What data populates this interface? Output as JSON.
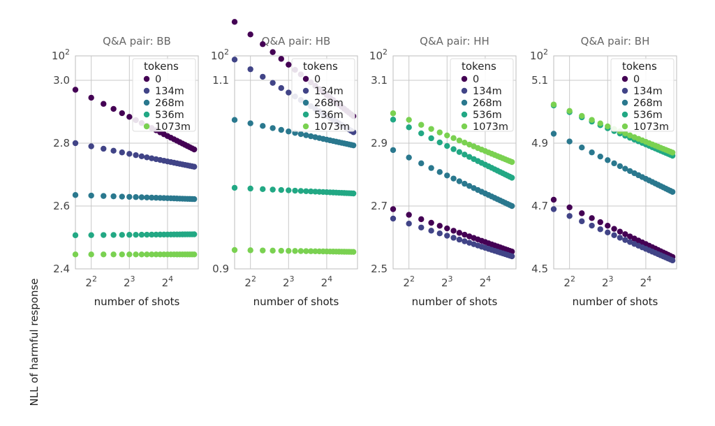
{
  "figure": {
    "ylabel": "NLL of harmful response"
  },
  "colors": {
    "0": "#440154",
    "134m": "#414487",
    "268m": "#2a788e",
    "536m": "#22a884",
    "1073m": "#7ad151",
    "grid": "#c8c8c8",
    "text": "#444444"
  },
  "chart_data": [
    {
      "type": "scatter",
      "title": "Q&A pair: BB",
      "xlabel": "number of shots",
      "x_scale": "log2",
      "xticks": [
        "2^2",
        "2^3",
        "2^4"
      ],
      "xlim": [
        3,
        28
      ],
      "yticks": [
        "2.4",
        "2.6",
        "2.8",
        "3.0",
        "10^2"
      ],
      "ylim": [
        2.4,
        3.0
      ],
      "legend": {
        "title": "tokens",
        "position": "top-right",
        "entries": [
          "0",
          "134m",
          "268m",
          "536m",
          "1073m"
        ]
      },
      "x": [
        3,
        4,
        5,
        6,
        7,
        8,
        9,
        10,
        11,
        12,
        13,
        14,
        15,
        16,
        17,
        18,
        19,
        20,
        21,
        22,
        23,
        24,
        25,
        26
      ],
      "series": [
        {
          "name": "0",
          "start": 2.97,
          "end": 2.78
        },
        {
          "name": "134m",
          "start": 2.8,
          "end": 2.725
        },
        {
          "name": "268m",
          "start": 2.635,
          "end": 2.622
        },
        {
          "name": "536m",
          "start": 2.507,
          "end": 2.51
        },
        {
          "name": "1073m",
          "start": 2.446,
          "end": 2.446
        }
      ]
    },
    {
      "type": "scatter",
      "title": "Q&A pair: HB",
      "xlabel": "number of shots",
      "x_scale": "log2",
      "xticks": [
        "2^2",
        "2^3",
        "2^4"
      ],
      "xlim": [
        3,
        28
      ],
      "yticks": [
        "0.9",
        "1.1",
        "10^2"
      ],
      "ylim": [
        0.9,
        1.1
      ],
      "legend": {
        "title": "tokens",
        "position": "top-right",
        "entries": [
          "0",
          "134m",
          "268m",
          "536m",
          "1073m"
        ]
      },
      "x": [
        3,
        4,
        5,
        6,
        7,
        8,
        9,
        10,
        11,
        12,
        13,
        14,
        15,
        16,
        17,
        18,
        19,
        20,
        21,
        22,
        23,
        24,
        25,
        26
      ],
      "series": [
        {
          "name": "0",
          "start": 1.162,
          "end": 1.062
        },
        {
          "name": "134m",
          "start": 1.122,
          "end": 1.045
        },
        {
          "name": "268m",
          "start": 1.058,
          "end": 1.031
        },
        {
          "name": "536m",
          "start": 0.986,
          "end": 0.98
        },
        {
          "name": "1073m",
          "start": 0.92,
          "end": 0.918
        }
      ]
    },
    {
      "type": "scatter",
      "title": "Q&A pair: HH",
      "xlabel": "number of shots",
      "x_scale": "log2",
      "xticks": [
        "2^2",
        "2^3",
        "2^4"
      ],
      "xlim": [
        3,
        28
      ],
      "yticks": [
        "2.5",
        "2.7",
        "2.9",
        "3.1",
        "10^2"
      ],
      "ylim": [
        2.5,
        3.1
      ],
      "legend": {
        "title": "tokens",
        "position": "top-right",
        "entries": [
          "0",
          "134m",
          "268m",
          "536m",
          "1073m"
        ]
      },
      "x": [
        3,
        4,
        5,
        6,
        7,
        8,
        9,
        10,
        11,
        12,
        13,
        14,
        15,
        16,
        17,
        18,
        19,
        20,
        21,
        22,
        23,
        24,
        25,
        26
      ],
      "series": [
        {
          "name": "0",
          "start": 2.69,
          "end": 2.555
        },
        {
          "name": "134m",
          "start": 2.66,
          "end": 2.54
        },
        {
          "name": "268m",
          "start": 2.878,
          "end": 2.7
        },
        {
          "name": "536m",
          "start": 2.975,
          "end": 2.79
        },
        {
          "name": "1073m",
          "start": 2.995,
          "end": 2.84
        }
      ]
    },
    {
      "type": "scatter",
      "title": "Q&A pair: BH",
      "xlabel": "number of shots",
      "x_scale": "log2",
      "xticks": [
        "2^2",
        "2^3",
        "2^4"
      ],
      "xlim": [
        3,
        28
      ],
      "yticks": [
        "4.5",
        "4.7",
        "4.9",
        "5.1",
        "10^2"
      ],
      "ylim": [
        4.5,
        5.1
      ],
      "legend": {
        "title": "tokens",
        "position": "top-right",
        "entries": [
          "0",
          "134m",
          "268m",
          "536m",
          "1073m"
        ]
      },
      "x": [
        3,
        4,
        5,
        6,
        7,
        8,
        9,
        10,
        11,
        12,
        13,
        14,
        15,
        16,
        17,
        18,
        19,
        20,
        21,
        22,
        23,
        24,
        25,
        26
      ],
      "series": [
        {
          "name": "0",
          "start": 4.72,
          "end": 4.538
        },
        {
          "name": "134m",
          "start": 4.69,
          "end": 4.527
        },
        {
          "name": "268m",
          "start": 4.93,
          "end": 4.745
        },
        {
          "name": "536m",
          "start": 5.02,
          "end": 4.86
        },
        {
          "name": "1073m",
          "start": 5.023,
          "end": 4.87
        }
      ]
    }
  ]
}
